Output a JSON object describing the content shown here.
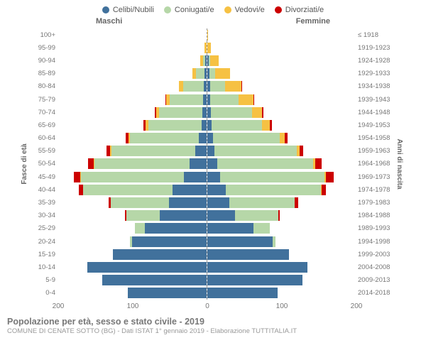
{
  "legend": [
    {
      "label": "Celibi/Nubili",
      "color": "#41719c"
    },
    {
      "label": "Coniugati/e",
      "color": "#b6d7a8"
    },
    {
      "label": "Vedovi/e",
      "color": "#f6c143"
    },
    {
      "label": "Divorziati/e",
      "color": "#cc0000"
    }
  ],
  "headers": {
    "male": "Maschi",
    "female": "Femmine"
  },
  "ylabel_left": "Fasce di età",
  "ylabel_right": "Anni di nascita",
  "xmax": 200,
  "xticks_male": [
    200,
    100,
    0
  ],
  "xticks_female": [
    0,
    100,
    200
  ],
  "title": "Popolazione per età, sesso e stato civile - 2019",
  "subtitle": "COMUNE DI CENATE SOTTO (BG) - Dati ISTAT 1° gennaio 2019 - Elaborazione TUTTITALIA.IT",
  "colors": {
    "celibi": "#41719c",
    "coniugati": "#b6d7a8",
    "vedovi": "#f6c143",
    "divorziati": "#cc0000",
    "grid": "#f0f0f0",
    "axis": "#999999",
    "background": "#ffffff"
  },
  "rows": [
    {
      "age": "100+",
      "birth": "≤ 1918",
      "m": {
        "c": 0,
        "co": 0,
        "v": 0,
        "d": 0
      },
      "f": {
        "c": 0,
        "co": 0,
        "v": 1,
        "d": 0
      }
    },
    {
      "age": "95-99",
      "birth": "1919-1923",
      "m": {
        "c": 0,
        "co": 0,
        "v": 2,
        "d": 0
      },
      "f": {
        "c": 0,
        "co": 0,
        "v": 5,
        "d": 0
      }
    },
    {
      "age": "90-94",
      "birth": "1924-1928",
      "m": {
        "c": 1,
        "co": 3,
        "v": 4,
        "d": 0
      },
      "f": {
        "c": 2,
        "co": 2,
        "v": 12,
        "d": 0
      }
    },
    {
      "age": "85-89",
      "birth": "1929-1933",
      "m": {
        "c": 2,
        "co": 12,
        "v": 5,
        "d": 0
      },
      "f": {
        "c": 3,
        "co": 8,
        "v": 20,
        "d": 0
      }
    },
    {
      "age": "80-84",
      "birth": "1934-1938",
      "m": {
        "c": 3,
        "co": 28,
        "v": 6,
        "d": 0
      },
      "f": {
        "c": 4,
        "co": 20,
        "v": 22,
        "d": 1
      }
    },
    {
      "age": "75-79",
      "birth": "1939-1943",
      "m": {
        "c": 4,
        "co": 45,
        "v": 5,
        "d": 1
      },
      "f": {
        "c": 4,
        "co": 38,
        "v": 20,
        "d": 1
      }
    },
    {
      "age": "70-74",
      "birth": "1944-1948",
      "m": {
        "c": 5,
        "co": 58,
        "v": 4,
        "d": 2
      },
      "f": {
        "c": 5,
        "co": 55,
        "v": 14,
        "d": 2
      }
    },
    {
      "age": "65-69",
      "birth": "1949-1953",
      "m": {
        "c": 6,
        "co": 72,
        "v": 3,
        "d": 3
      },
      "f": {
        "c": 6,
        "co": 68,
        "v": 10,
        "d": 3
      }
    },
    {
      "age": "60-64",
      "birth": "1954-1958",
      "m": {
        "c": 10,
        "co": 92,
        "v": 2,
        "d": 4
      },
      "f": {
        "c": 8,
        "co": 90,
        "v": 6,
        "d": 4
      }
    },
    {
      "age": "55-59",
      "birth": "1959-1963",
      "m": {
        "c": 15,
        "co": 112,
        "v": 2,
        "d": 5
      },
      "f": {
        "c": 10,
        "co": 110,
        "v": 4,
        "d": 5
      }
    },
    {
      "age": "50-54",
      "birth": "1964-1968",
      "m": {
        "c": 22,
        "co": 128,
        "v": 1,
        "d": 8
      },
      "f": {
        "c": 14,
        "co": 128,
        "v": 3,
        "d": 9
      }
    },
    {
      "age": "45-49",
      "birth": "1969-1973",
      "m": {
        "c": 30,
        "co": 138,
        "v": 1,
        "d": 9
      },
      "f": {
        "c": 18,
        "co": 140,
        "v": 2,
        "d": 10
      }
    },
    {
      "age": "40-44",
      "birth": "1974-1978",
      "m": {
        "c": 45,
        "co": 120,
        "v": 0,
        "d": 6
      },
      "f": {
        "c": 25,
        "co": 128,
        "v": 1,
        "d": 6
      }
    },
    {
      "age": "35-39",
      "birth": "1979-1983",
      "m": {
        "c": 50,
        "co": 78,
        "v": 0,
        "d": 3
      },
      "f": {
        "c": 30,
        "co": 88,
        "v": 0,
        "d": 4
      }
    },
    {
      "age": "30-34",
      "birth": "1984-1988",
      "m": {
        "c": 62,
        "co": 45,
        "v": 0,
        "d": 2
      },
      "f": {
        "c": 38,
        "co": 58,
        "v": 0,
        "d": 2
      }
    },
    {
      "age": "25-29",
      "birth": "1989-1993",
      "m": {
        "c": 82,
        "co": 14,
        "v": 0,
        "d": 0
      },
      "f": {
        "c": 62,
        "co": 22,
        "v": 0,
        "d": 0
      }
    },
    {
      "age": "20-24",
      "birth": "1994-1998",
      "m": {
        "c": 100,
        "co": 2,
        "v": 0,
        "d": 0
      },
      "f": {
        "c": 88,
        "co": 4,
        "v": 0,
        "d": 0
      }
    },
    {
      "age": "15-19",
      "birth": "1999-2003",
      "m": {
        "c": 125,
        "co": 0,
        "v": 0,
        "d": 0
      },
      "f": {
        "c": 110,
        "co": 0,
        "v": 0,
        "d": 0
      }
    },
    {
      "age": "10-14",
      "birth": "2004-2008",
      "m": {
        "c": 160,
        "co": 0,
        "v": 0,
        "d": 0
      },
      "f": {
        "c": 135,
        "co": 0,
        "v": 0,
        "d": 0
      }
    },
    {
      "age": "5-9",
      "birth": "2009-2013",
      "m": {
        "c": 140,
        "co": 0,
        "v": 0,
        "d": 0
      },
      "f": {
        "c": 128,
        "co": 0,
        "v": 0,
        "d": 0
      }
    },
    {
      "age": "0-4",
      "birth": "2014-2018",
      "m": {
        "c": 105,
        "co": 0,
        "v": 0,
        "d": 0
      },
      "f": {
        "c": 95,
        "co": 0,
        "v": 0,
        "d": 0
      }
    }
  ]
}
